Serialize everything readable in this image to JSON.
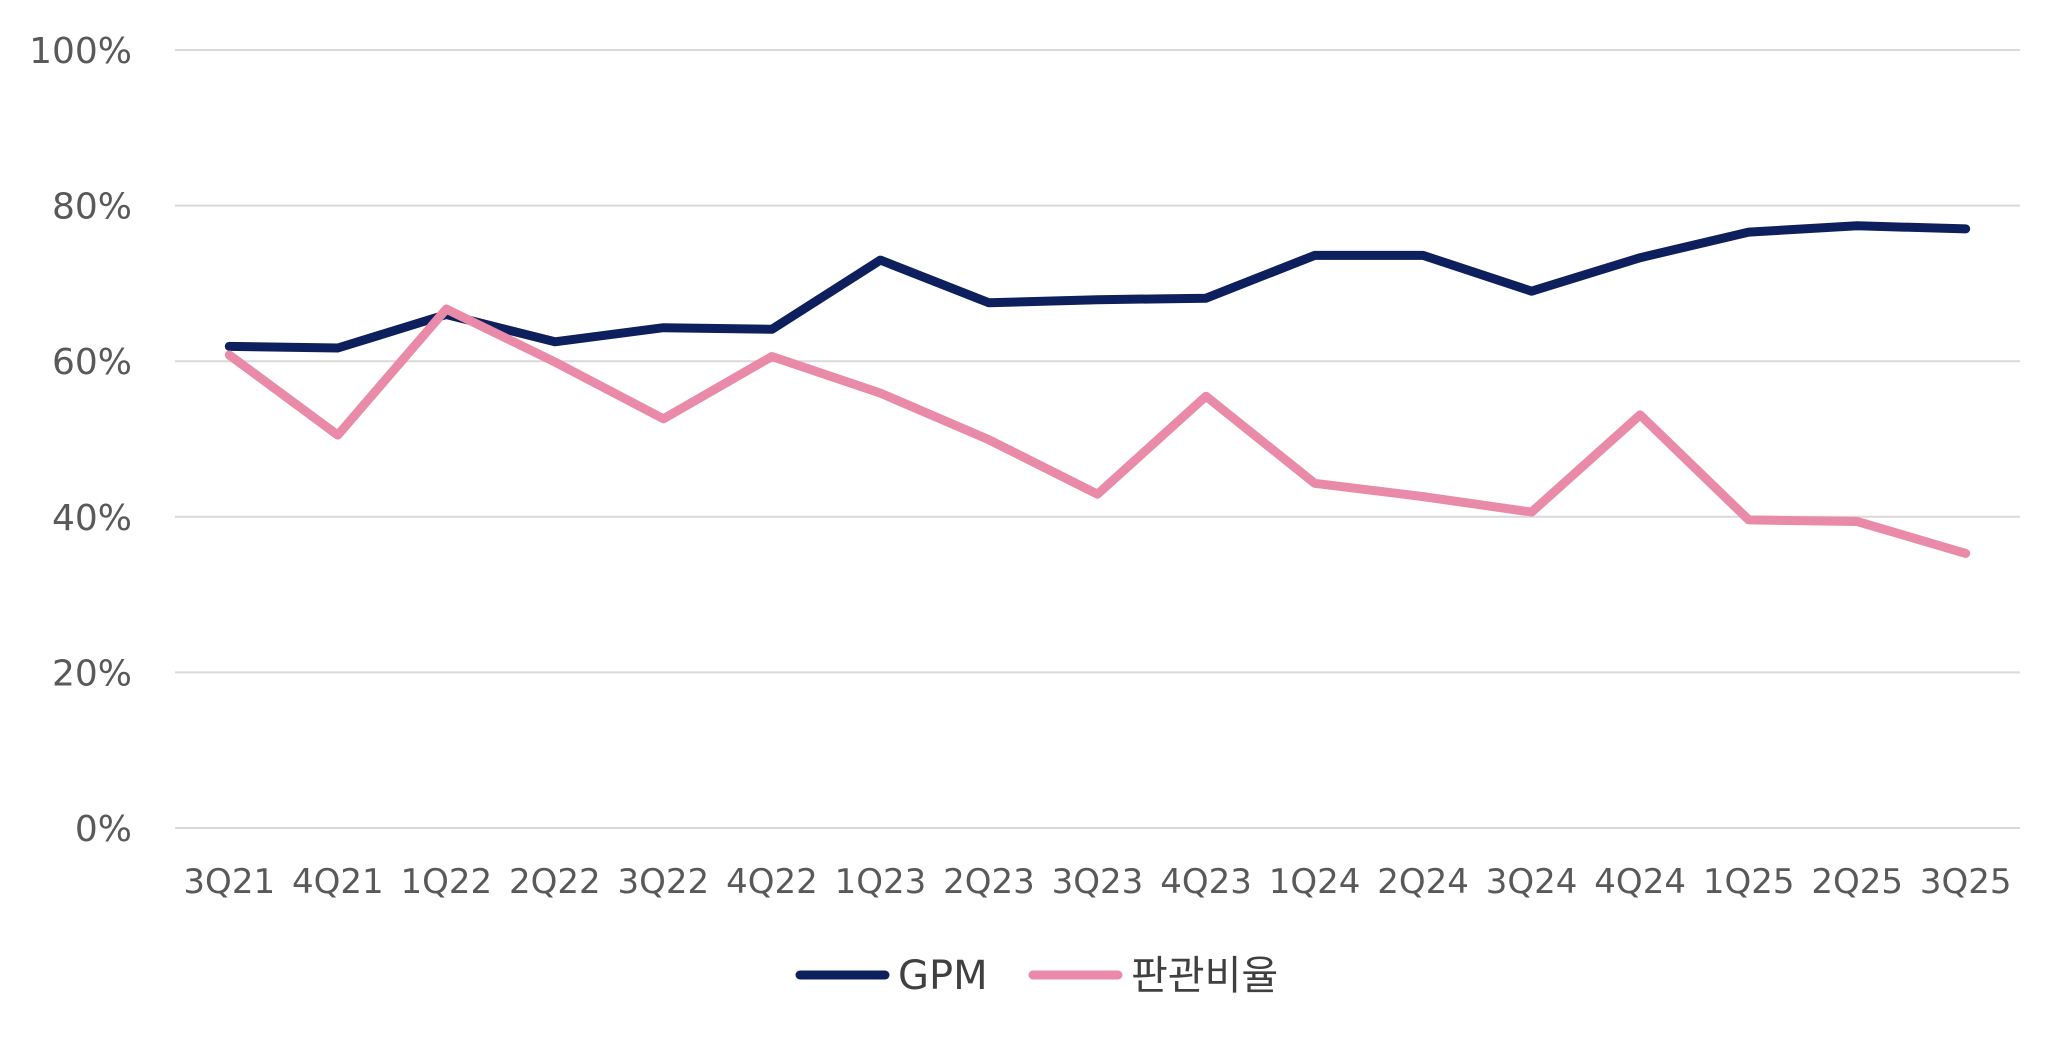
{
  "chart_data": {
    "type": "line",
    "title": "",
    "xlabel": "",
    "ylabel": "",
    "categories": [
      "3Q21",
      "4Q21",
      "1Q22",
      "2Q22",
      "3Q22",
      "4Q22",
      "1Q23",
      "2Q23",
      "3Q23",
      "4Q23",
      "1Q24",
      "2Q24",
      "3Q24",
      "4Q24",
      "1Q25",
      "2Q25",
      "3Q25"
    ],
    "ylim": [
      0,
      100
    ],
    "yticks": [
      0,
      20,
      40,
      60,
      80,
      100
    ],
    "ytick_labels": [
      "0%",
      "20%",
      "40%",
      "60%",
      "80%",
      "100%"
    ],
    "grid": true,
    "legend_position": "bottom-center",
    "series": [
      {
        "name": "GPM",
        "color": "#0d1f5c",
        "values": [
          61.9,
          61.7,
          66.0,
          62.5,
          64.3,
          64.1,
          73.0,
          67.5,
          67.9,
          68.1,
          73.6,
          73.6,
          69.0,
          73.3,
          76.6,
          77.4,
          77.0
        ]
      },
      {
        "name": "판관비율",
        "color": "#e98aa9",
        "values": [
          60.8,
          50.5,
          66.7,
          59.9,
          52.6,
          60.6,
          55.9,
          49.9,
          42.9,
          55.5,
          44.3,
          42.6,
          40.6,
          53.1,
          39.6,
          39.4,
          35.3
        ]
      }
    ]
  }
}
